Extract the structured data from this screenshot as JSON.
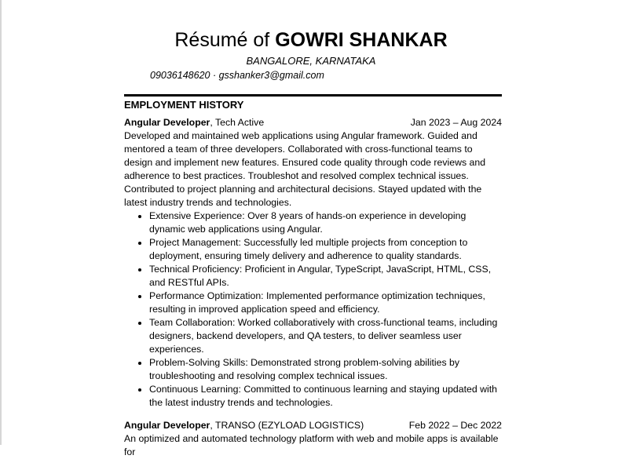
{
  "header": {
    "title_prefix": "Résumé of",
    "name": "GOWRI SHANKAR",
    "location": "BANGALORE, KARNATAKA",
    "contact": "09036148620 · gsshanker3@gmail.com"
  },
  "section": {
    "heading": "EMPLOYMENT HISTORY"
  },
  "jobs": [
    {
      "title": "Angular Developer",
      "company": ", Tech Active",
      "dates": "Jan 2023 – Aug 2024",
      "description": "Developed and maintained web applications using Angular framework. Guided and mentored a team of three developers. Collaborated with cross-functional teams to design and implement new features. Ensured code quality through code reviews and adherence to best practices. Troubleshot and resolved complex technical issues. Contributed to project planning and architectural decisions. Stayed updated with the latest industry trends and technologies.",
      "bullets": [
        "Extensive Experience: Over 8 years of hands-on experience in developing dynamic web applications using Angular.",
        "Project Management: Successfully led multiple projects from conception to deployment, ensuring timely delivery and adherence to quality standards.",
        "Technical Proficiency: Proficient in Angular, TypeScript, JavaScript, HTML, CSS, and RESTful APIs.",
        "Performance Optimization: Implemented performance optimization techniques, resulting in improved application speed and efficiency.",
        "Team Collaboration: Worked collaboratively with cross-functional teams, including designers, backend developers, and QA testers, to deliver seamless user experiences.",
        "Problem-Solving Skills: Demonstrated strong problem-solving abilities by troubleshooting and resolving complex technical issues.",
        "Continuous Learning: Committed to continuous learning and staying updated with the latest industry trends and technologies."
      ]
    },
    {
      "title": "Angular Developer",
      "company": ", TRANSO (EZYLOAD LOGISTICS)",
      "dates": "Feb 2022 – Dec 2022",
      "description": "An optimized and automated technology platform with web and mobile apps is available for"
    }
  ]
}
